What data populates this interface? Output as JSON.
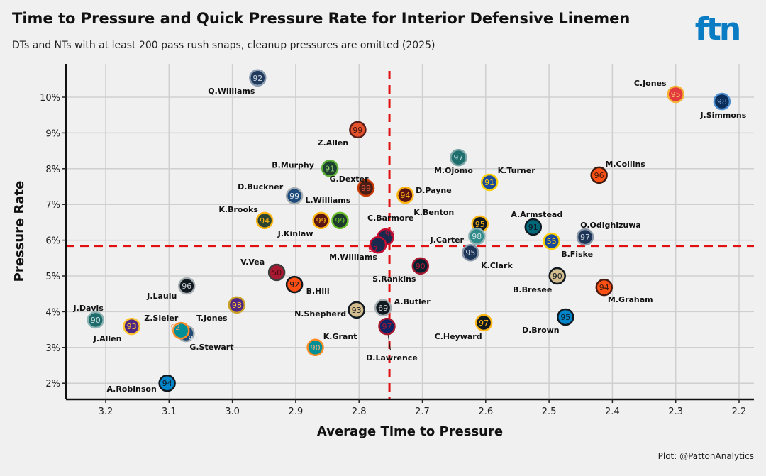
{
  "chart_data": {
    "type": "scatter",
    "title": "Time to Pressure and Quick Pressure Rate for Interior Defensive Linemen",
    "subtitle": "DTs and NTs with at least 200 pass rush snaps, cleanup pressures are omitted (2025)",
    "xlabel": "Average Time to Pressure",
    "ylabel": "Pressure Rate",
    "caption": "Plot: @PattonAnalytics",
    "logo": "ftn",
    "logo_color": "#0a7cc4",
    "x_reversed": true,
    "xlim": [
      3.27,
      2.17
    ],
    "ylim": [
      1.5,
      10.9
    ],
    "x_ticks": [
      "3.2",
      "3.1",
      "3.0",
      "2.9",
      "2.8",
      "2.7",
      "2.6",
      "2.5",
      "2.4",
      "2.3",
      "2.2"
    ],
    "y_ticks": [
      "2%",
      "3%",
      "4%",
      "5%",
      "6%",
      "7%",
      "8%",
      "9%",
      "10%"
    ],
    "grid": true,
    "reference_lines": {
      "x": 2.752,
      "y": 5.84,
      "color": "#e01010",
      "style": "dashed"
    },
    "points": [
      {
        "name": "Q.Williams",
        "number": "92",
        "x": 2.96,
        "y": 10.54,
        "fill": "#1f3a5c",
        "rim": "#8a9bb0",
        "text": "#cfd8e3"
      },
      {
        "name": "C.Jones",
        "number": "95",
        "x": 2.3,
        "y": 10.08,
        "fill": "#e23a3e",
        "rim": "#f5b335",
        "text": "#f7c76f"
      },
      {
        "name": "J.Simmons",
        "number": "98",
        "x": 2.227,
        "y": 9.88,
        "fill": "#0b2d59",
        "rim": "#4f8fd0",
        "text": "#8ab4e8"
      },
      {
        "name": "Z.Allen",
        "number": "99",
        "x": 2.802,
        "y": 9.09,
        "fill": "#e5522b",
        "rim": "#5a1f1a",
        "text": "#3b1410"
      },
      {
        "name": "M.Ojomo",
        "number": "97",
        "x": 2.643,
        "y": 8.31,
        "fill": "#1f6e6e",
        "rim": "#7fa7a7",
        "text": "#c5dcdc"
      },
      {
        "name": "B.Murphy",
        "number": "91",
        "x": 2.846,
        "y": 8.01,
        "fill": "#1d4030",
        "rim": "#5fb13a",
        "text": "#8fd46a"
      },
      {
        "name": "M.Collins",
        "number": "96",
        "x": 2.421,
        "y": 7.82,
        "fill": "#fb4f14",
        "rim": "#3a1a0e",
        "text": "#3a1a0e"
      },
      {
        "name": "K.Turner",
        "number": "91",
        "x": 2.594,
        "y": 7.62,
        "fill": "#1b4a9a",
        "rim": "#ffd100",
        "text": "#ffd100"
      },
      {
        "name": "G.Dexter",
        "number": "99",
        "x": 2.789,
        "y": 7.46,
        "fill": "#4a1e17",
        "rim": "#c83803",
        "text": "#e2553a"
      },
      {
        "name": "D.Payne",
        "number": "94",
        "x": 2.727,
        "y": 7.26,
        "fill": "#5a1414",
        "rim": "#ffb612",
        "text": "#ffb612"
      },
      {
        "name": "D.Buckner",
        "number": "99",
        "x": 2.902,
        "y": 7.24,
        "fill": "#1d4a7a",
        "rim": "#a5acaf",
        "text": "#e0e6ee"
      },
      {
        "name": "K.Brooks",
        "number": "94",
        "x": 2.949,
        "y": 6.55,
        "fill": "#2c4430",
        "rim": "#ffb612",
        "text": "#ffb612"
      },
      {
        "name": "J.Kinlaw",
        "number": "99",
        "x": 2.86,
        "y": 6.55,
        "fill": "#5a1414",
        "rim": "#ffb612",
        "text": "#ffb612"
      },
      {
        "name": "L.Williams",
        "number": "99",
        "x": 2.83,
        "y": 6.55,
        "fill": "#1d3a2e",
        "rim": "#69be28",
        "text": "#69be28"
      },
      {
        "name": "K.Benton",
        "number": "95",
        "x": 2.609,
        "y": 6.45,
        "fill": "#101820",
        "rim": "#ffb612",
        "text": "#ffb612"
      },
      {
        "name": "A.Armstead",
        "number": "91",
        "x": 2.525,
        "y": 6.37,
        "fill": "#006778",
        "rim": "#101820",
        "text": "#101820"
      },
      {
        "name": "C.Barmore",
        "number": "90",
        "x": 2.758,
        "y": 6.09,
        "fill": "#1a2a4e",
        "rim": "#c60c30",
        "text": "#c60c30"
      },
      {
        "name": "O.Odighizuwa",
        "number": "97",
        "x": 2.443,
        "y": 6.09,
        "fill": "#1d3557",
        "rim": "#8a97a8",
        "text": "#d0d8e2"
      },
      {
        "name": "J.Carter",
        "number": "98",
        "x": 2.614,
        "y": 6.11,
        "fill": "#2f8a8a",
        "rim": "#8fb4b4",
        "text": "#cce0e0"
      },
      {
        "name": "B.Fiske",
        "number": "55",
        "x": 2.496,
        "y": 5.97,
        "fill": "#1b4a9a",
        "rim": "#ffd100",
        "text": "#ffd100"
      },
      {
        "name": "M.Williams",
        "number": "97",
        "x": 2.77,
        "y": 5.87,
        "fill": "#1a2a4e",
        "rim": "#c60c30",
        "text": "#c60c30"
      },
      {
        "name": "K.Clark",
        "number": "95",
        "x": 2.624,
        "y": 5.65,
        "fill": "#1d3557",
        "rim": "#8a97a8",
        "text": "#d0d8e2"
      },
      {
        "name": "S.Rankins",
        "number": "90",
        "x": 2.703,
        "y": 5.28,
        "fill": "#03202f",
        "rim": "#a71930",
        "text": "#a71930"
      },
      {
        "name": "V.Vea",
        "number": "50",
        "x": 2.93,
        "y": 5.1,
        "fill": "#a71930",
        "rim": "#3d3d3d",
        "text": "#4a0a12"
      },
      {
        "name": "B.Bresee",
        "number": "90",
        "x": 2.487,
        "y": 5.0,
        "fill": "#d3bc8d",
        "rim": "#101820",
        "text": "#101820"
      },
      {
        "name": "B.Hill",
        "number": "92",
        "x": 2.902,
        "y": 4.76,
        "fill": "#fb4f14",
        "rim": "#101820",
        "text": "#101820"
      },
      {
        "name": "M.Graham",
        "number": "94",
        "x": 2.413,
        "y": 4.68,
        "fill": "#fb4f14",
        "rim": "#4a1a0e",
        "text": "#3a1a0e"
      },
      {
        "name": "J.Laulu",
        "number": "96",
        "x": 3.072,
        "y": 4.72,
        "fill": "#101820",
        "rim": "#a5acaf",
        "text": "#c8ccd0"
      },
      {
        "name": "T.Jones",
        "number": "98",
        "x": 2.993,
        "y": 4.19,
        "fill": "#4f2683",
        "rim": "#c9a227",
        "text": "#ffc62f"
      },
      {
        "name": "A.Butler",
        "number": "69",
        "x": 2.762,
        "y": 4.11,
        "fill": "#101820",
        "rim": "#a5acaf",
        "text": "#d0d0d0"
      },
      {
        "name": "N.Shepherd",
        "number": "93",
        "x": 2.804,
        "y": 4.05,
        "fill": "#d3bc8d",
        "rim": "#101820",
        "text": "#101820"
      },
      {
        "name": "D.Brown",
        "number": "95",
        "x": 2.474,
        "y": 3.85,
        "fill": "#0085ca",
        "rim": "#101820",
        "text": "#101820"
      },
      {
        "name": "J.Davis",
        "number": "90",
        "x": 3.216,
        "y": 3.77,
        "fill": "#1d6b6b",
        "rim": "#8fb4b4",
        "text": "#cce0e0"
      },
      {
        "name": "C.Heyward",
        "number": "97",
        "x": 2.603,
        "y": 3.69,
        "fill": "#101820",
        "rim": "#ffb612",
        "text": "#ffb612"
      },
      {
        "name": "D.Lawrence",
        "number": "97",
        "x": 2.756,
        "y": 3.59,
        "fill": "#0b2265",
        "rim": "#a71930",
        "text": "#a71930"
      },
      {
        "name": "J.Allen",
        "number": "93",
        "x": 3.159,
        "y": 3.59,
        "fill": "#4f2683",
        "rim": "#ffc62f",
        "text": "#ffc62f"
      },
      {
        "name": "G.Stewart",
        "number": "90",
        "x": 3.073,
        "y": 3.39,
        "fill": "#1d4a7a",
        "rim": "#a5acaf",
        "text": "#e0e6ee"
      },
      {
        "name": "Z.Sieler",
        "number": "92",
        "x": 3.081,
        "y": 3.47,
        "fill": "#008e97",
        "rim": "#fc8c22",
        "text": "#f5a06b"
      },
      {
        "name": "K.Grant",
        "number": "90",
        "x": 2.869,
        "y": 3.0,
        "fill": "#008e97",
        "rim": "#fc8c22",
        "text": "#f5b07b"
      },
      {
        "name": "A.Robinson",
        "number": "94",
        "x": 3.103,
        "y": 2.0,
        "fill": "#0085ca",
        "rim": "#101820",
        "text": "#101820"
      }
    ]
  }
}
